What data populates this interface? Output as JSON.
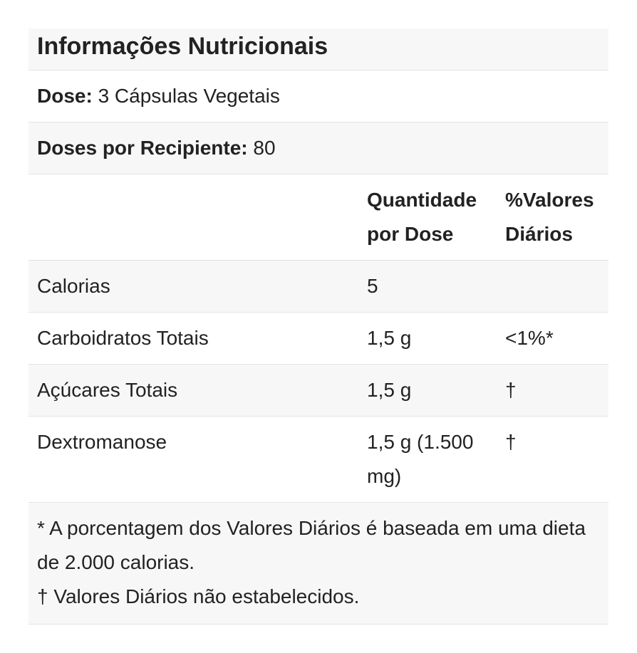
{
  "title": "Informações Nutricionais",
  "serving": {
    "label": "Dose:",
    "value": "3 Cápsulas Vegetais"
  },
  "servings_per_container": {
    "label": "Doses por Recipiente:",
    "value": "80"
  },
  "table": {
    "columns": [
      "Quantidade por Dose",
      "%Valores Diários"
    ],
    "rows": [
      {
        "name": "Calorias",
        "amount": "5"
      },
      {
        "name": "Carboidratos Totais",
        "amount": "1,5 g",
        "dv": "<1%*"
      },
      {
        "name": "Açúcares Totais",
        "amount": "1,5 g",
        "dv": "†"
      },
      {
        "name": "Dextromanose",
        "amount": "1,5 g (1.500 mg)",
        "dv": "†"
      }
    ]
  },
  "footnotes": [
    "* A porcentagem dos Valores Diários é baseada em uma dieta de 2.000 calorias.",
    "† Valores Diários não estabelecidos."
  ]
}
